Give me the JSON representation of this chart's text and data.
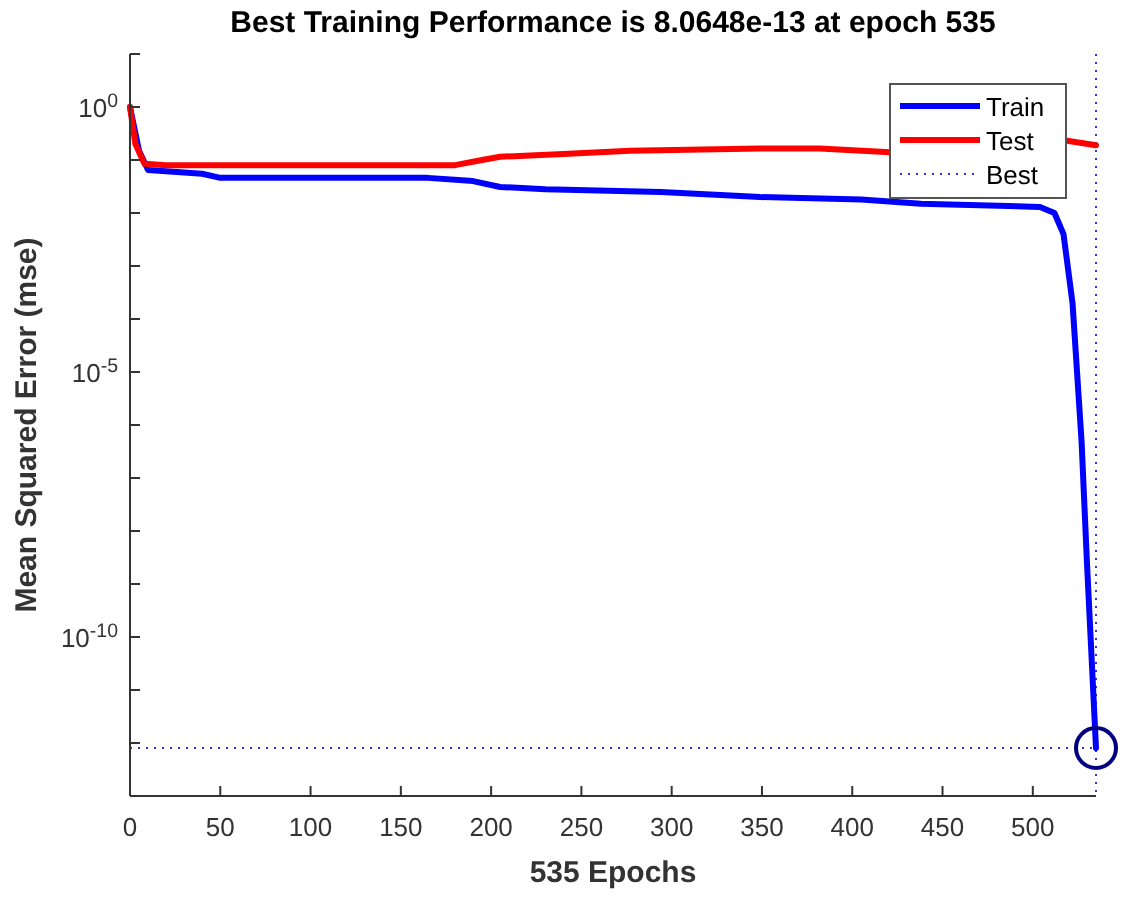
{
  "chart_data": {
    "type": "line",
    "title": "Best Training Performance is 8.0648e-13 at epoch 535",
    "xlabel": "535 Epochs",
    "ylabel": "Mean Squared Error  (mse)",
    "xlim": [
      0,
      535
    ],
    "xticks": [
      0,
      50,
      100,
      150,
      200,
      250,
      300,
      350,
      400,
      450,
      500
    ],
    "ylim": [
      1e-13,
      10
    ],
    "log": "y",
    "yticks": [
      {
        "value": 1e-13,
        "label": null
      },
      {
        "value": 1e-12,
        "label": null
      },
      {
        "value": 1e-11,
        "label": null
      },
      {
        "value": 1e-10,
        "label": "10$^{-10}$"
      },
      {
        "value": 1e-09,
        "label": null
      },
      {
        "value": 1e-08,
        "label": null
      },
      {
        "value": 1e-07,
        "label": null
      },
      {
        "value": 1e-06,
        "label": null
      },
      {
        "value": 1e-05,
        "label": "10$^{-5}$"
      },
      {
        "value": 0.0001,
        "label": null
      },
      {
        "value": 0.001,
        "label": null
      },
      {
        "value": 0.01,
        "label": null
      },
      {
        "value": 0.1,
        "label": null
      },
      {
        "value": 1,
        "label": "10$^{0}$"
      },
      {
        "value": 10,
        "label": null
      }
    ],
    "legend": "top right",
    "ref_lines": [
      {
        "axis": "y",
        "value": 8.0648e-13,
        "label": "Best",
        "color": "#3333cc",
        "line_style": "dotted"
      },
      {
        "axis": "x",
        "value": 535,
        "label": null,
        "color": "#3333cc",
        "line_style": "dotted"
      }
    ],
    "series": [
      {
        "name": "Train",
        "color": "#0000ff",
        "line_style": "solid",
        "x": [
          0,
          5,
          10,
          40,
          50,
          165,
          190,
          205,
          230,
          294,
          349,
          405,
          438,
          504,
          512,
          517,
          522,
          527,
          530,
          535
        ],
        "values": [
          1,
          0.15,
          0.065,
          0.055,
          0.046,
          0.046,
          0.04,
          0.031,
          0.028,
          0.025,
          0.02,
          0.018,
          0.015,
          0.013,
          0.01,
          0.004,
          0.0002,
          5e-07,
          2.5e-09,
          8.0648e-13
        ]
      },
      {
        "name": "Test",
        "color": "#ff0000",
        "line_style": "solid",
        "x": [
          0,
          3,
          8,
          20,
          100,
          180,
          195,
          205,
          240,
          277,
          349,
          382,
          421,
          450,
          480,
          519,
          535
        ],
        "values": [
          1,
          0.2,
          0.085,
          0.08,
          0.08,
          0.08,
          0.1,
          0.115,
          0.13,
          0.15,
          0.165,
          0.165,
          0.14,
          null,
          null,
          0.23,
          0.19
        ]
      },
      {
        "type": "scatter",
        "marker": "circle",
        "color": "#000080",
        "x": [
          535
        ],
        "values": [
          8.0648e-13
        ]
      }
    ]
  }
}
